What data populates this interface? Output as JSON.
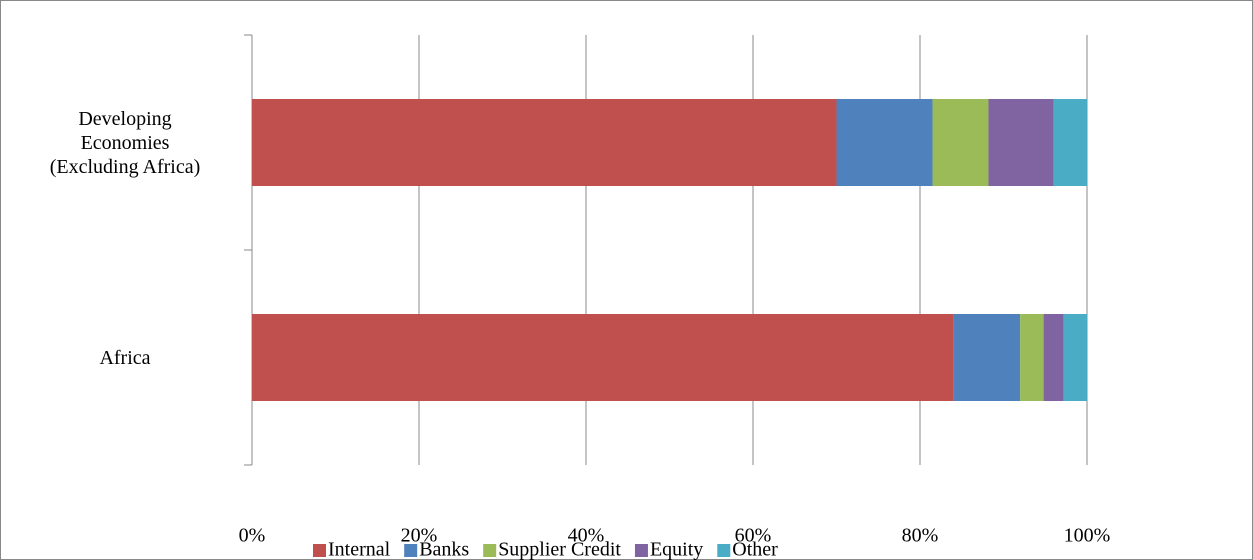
{
  "chart_data": {
    "type": "stacked_barh",
    "categories": [
      "Africa",
      "Developing\nEconomies\n(Excluding Africa)"
    ],
    "series": [
      {
        "name": "Internal",
        "color": "#c0504d",
        "values": [
          84,
          70
        ]
      },
      {
        "name": "Banks",
        "color": "#4f81bd",
        "values": [
          8,
          11.5
        ]
      },
      {
        "name": "Supplier Credit",
        "color": "#9bbb59",
        "values": [
          2.8,
          6.7
        ]
      },
      {
        "name": "Equity",
        "color": "#8064a2",
        "values": [
          2.4,
          7.8
        ]
      },
      {
        "name": "Other",
        "color": "#4bacc6",
        "values": [
          2.8,
          4
        ]
      }
    ],
    "xlim": [
      0,
      100
    ],
    "xticks": [
      {
        "value": 0,
        "label": "0%"
      },
      {
        "value": 20,
        "label": "20%"
      },
      {
        "value": 40,
        "label": "40%"
      },
      {
        "value": 60,
        "label": "60%"
      },
      {
        "value": 80,
        "label": "80%"
      },
      {
        "value": 100,
        "label": "100%"
      }
    ],
    "grid": true,
    "legend": "bottom"
  }
}
